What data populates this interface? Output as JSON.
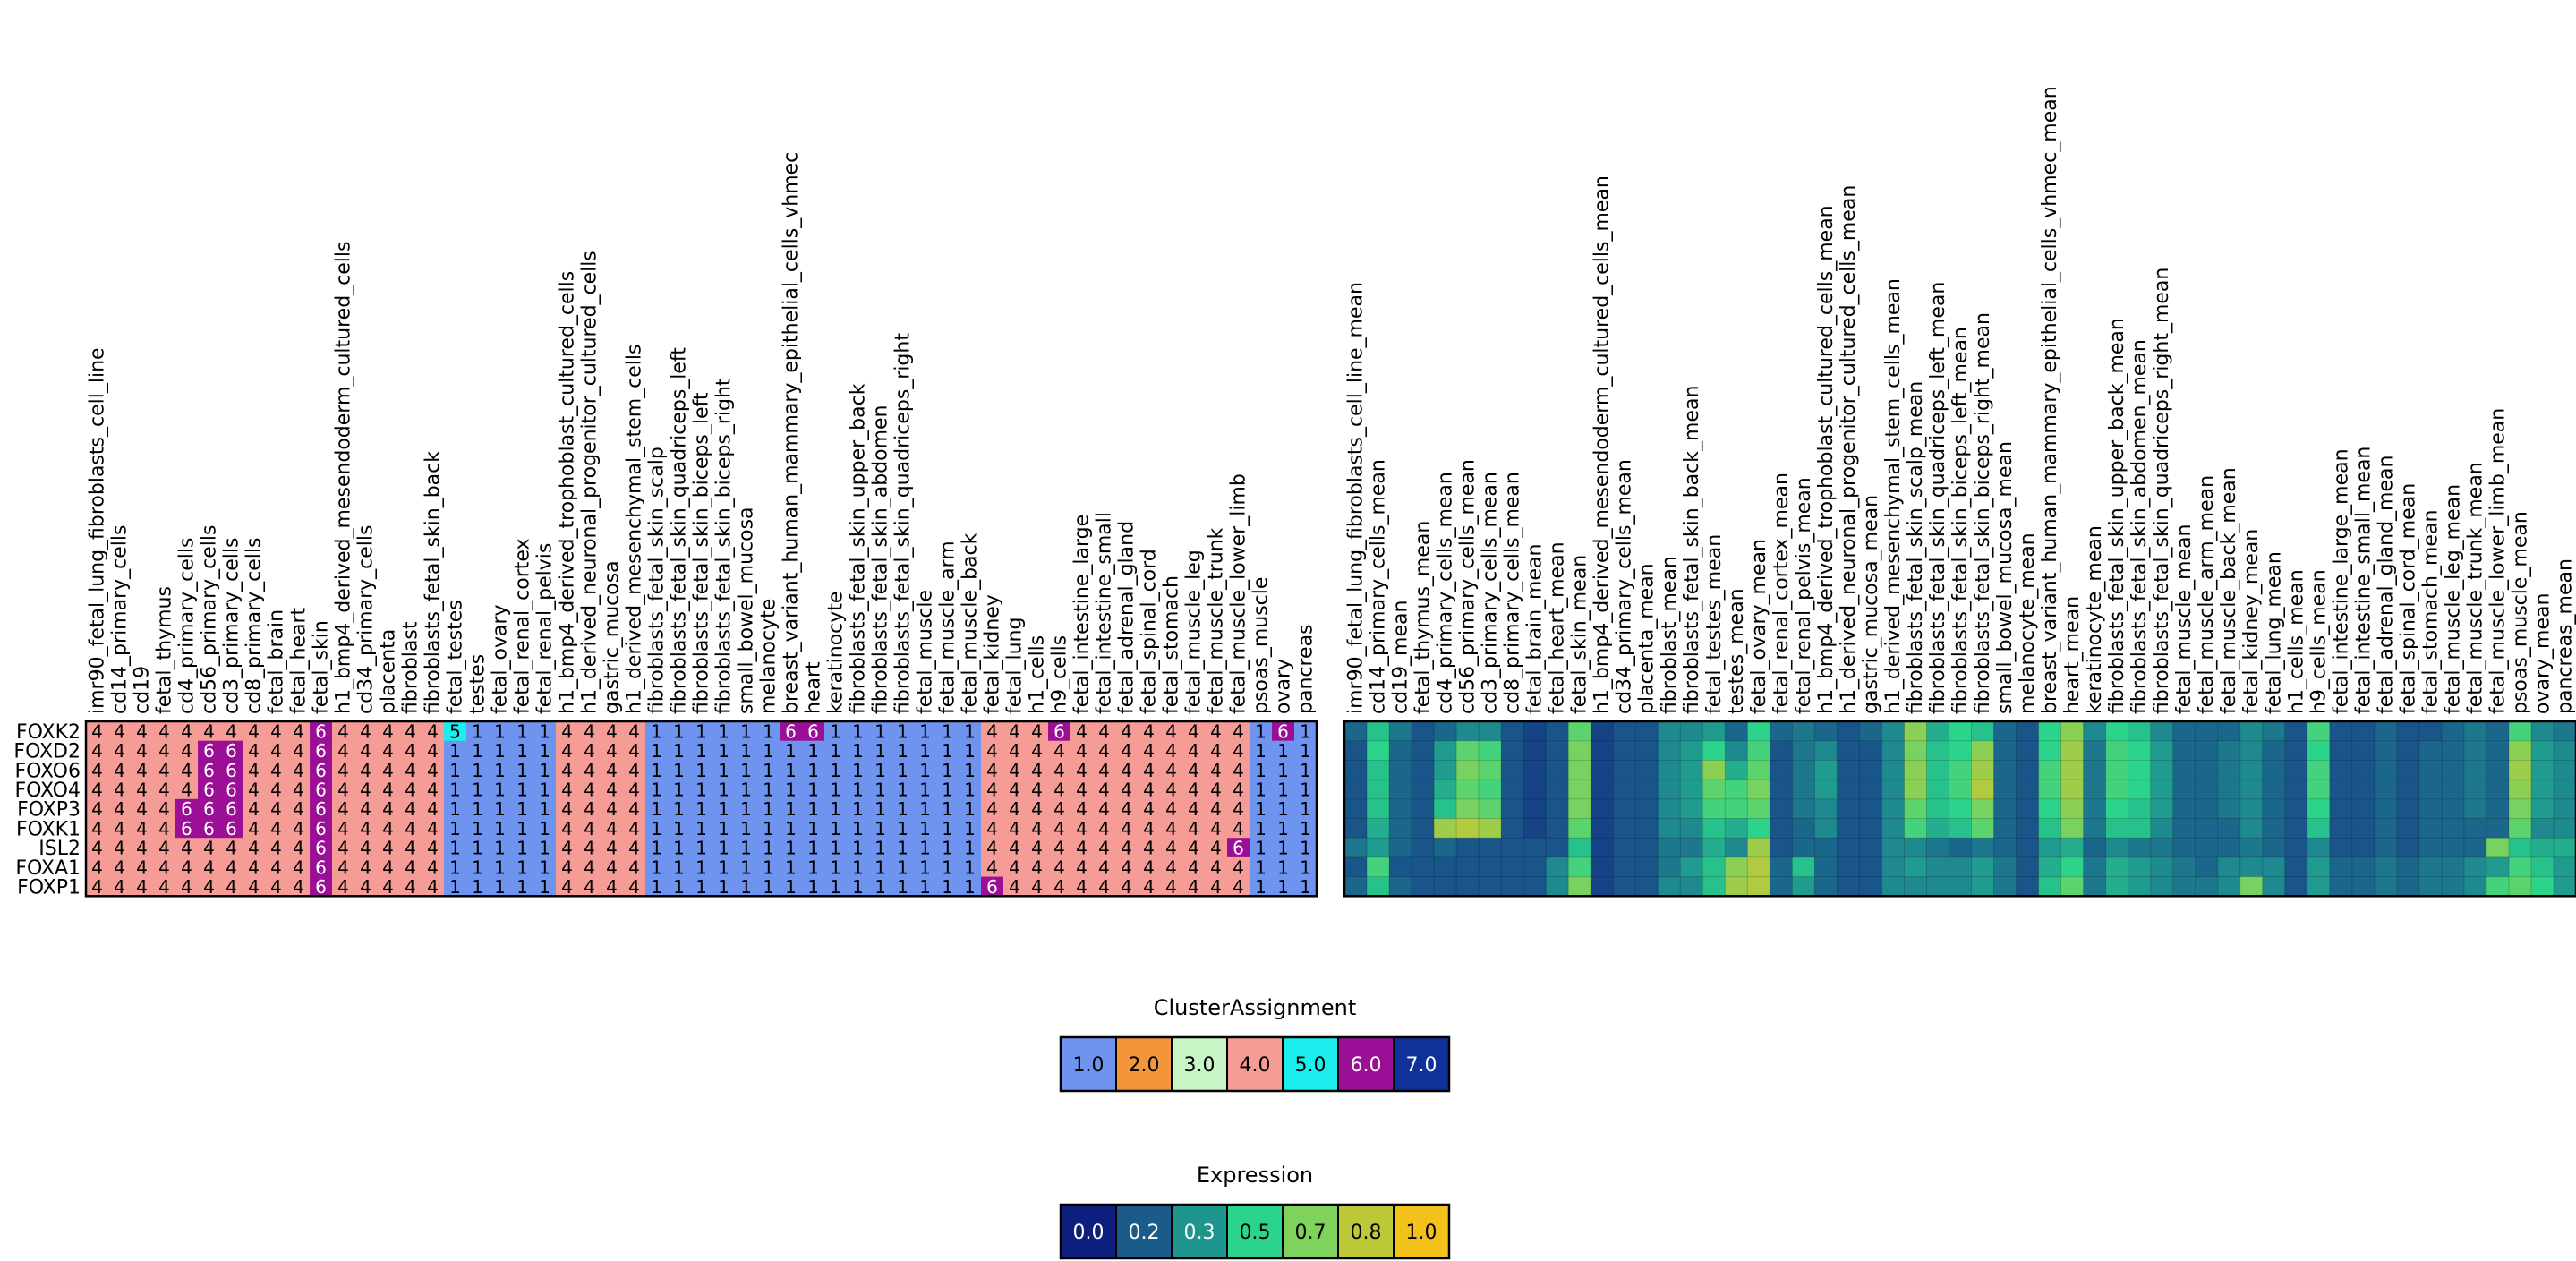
{
  "chart_data": [
    {
      "type": "heatmap",
      "subtype": "cluster-assignment",
      "genes": [
        "FOXK2",
        "FOXD2",
        "FOXO6",
        "FOXO4",
        "FOXP3",
        "FOXK1",
        "ISL2",
        "FOXA1",
        "FOXP1"
      ],
      "columns": [
        "imr90_fetal_lung_fibroblasts_cell_line",
        "cd14_primary_cells",
        "cd19",
        "fetal_thymus",
        "cd4_primary_cells",
        "cd56_primary_cells",
        "cd3_primary_cells",
        "cd8_primary_cells",
        "fetal_brain",
        "fetal_heart",
        "fetal_skin",
        "h1_bmp4_derived_mesendoderm_cultured_cells",
        "cd34_primary_cells",
        "placenta",
        "fibroblast",
        "fibroblasts_fetal_skin_back",
        "fetal_testes",
        "testes",
        "fetal_ovary",
        "fetal_renal_cortex",
        "fetal_renal_pelvis",
        "h1_bmp4_derived_trophoblast_cultured_cells",
        "h1_derived_neuronal_progenitor_cultured_cells",
        "gastric_mucosa",
        "h1_derived_mesenchymal_stem_cells",
        "fibroblasts_fetal_skin_scalp",
        "fibroblasts_fetal_skin_quadriceps_left",
        "fibroblasts_fetal_skin_biceps_left",
        "fibroblasts_fetal_skin_biceps_right",
        "small_bowel_mucosa",
        "melanocyte",
        "breast_variant_human_mammary_epithelial_cells_vhmec",
        "heart",
        "keratinocyte",
        "fibroblasts_fetal_skin_upper_back",
        "fibroblasts_fetal_skin_abdomen",
        "fibroblasts_fetal_skin_quadriceps_right",
        "fetal_muscle",
        "fetal_muscle_arm",
        "fetal_muscle_back",
        "fetal_kidney",
        "fetal_lung",
        "h1_cells",
        "h9_cells",
        "fetal_intestine_large",
        "fetal_intestine_small",
        "fetal_adrenal_gland",
        "fetal_spinal_cord",
        "fetal_stomach",
        "fetal_muscle_leg",
        "fetal_muscle_trunk",
        "fetal_muscle_lower_limb",
        "psoas_muscle",
        "ovary",
        "pancreas"
      ],
      "column_clusters": [
        4,
        4,
        4,
        4,
        4,
        4,
        4,
        4,
        4,
        4,
        4,
        4,
        4,
        4,
        4,
        4,
        1,
        1,
        1,
        1,
        1,
        4,
        4,
        4,
        4,
        1,
        1,
        1,
        1,
        1,
        1,
        1,
        1,
        1,
        1,
        1,
        1,
        1,
        1,
        1,
        4,
        4,
        4,
        4,
        4,
        4,
        4,
        4,
        4,
        4,
        4,
        4,
        1,
        1,
        1
      ],
      "overrides": {
        "FOXK2": [
          [
            10,
            6
          ],
          [
            16,
            5
          ],
          [
            31,
            6
          ],
          [
            32,
            6
          ],
          [
            43,
            6
          ],
          [
            53,
            6
          ]
        ],
        "FOXD2": [
          [
            5,
            6
          ],
          [
            6,
            6
          ],
          [
            10,
            6
          ]
        ],
        "FOXO6": [
          [
            5,
            6
          ],
          [
            6,
            6
          ],
          [
            10,
            6
          ]
        ],
        "FOXO4": [
          [
            5,
            6
          ],
          [
            6,
            6
          ],
          [
            10,
            6
          ]
        ],
        "FOXP3": [
          [
            4,
            6
          ],
          [
            5,
            6
          ],
          [
            6,
            6
          ],
          [
            10,
            6
          ]
        ],
        "FOXK1": [
          [
            4,
            6
          ],
          [
            5,
            6
          ],
          [
            6,
            6
          ],
          [
            10,
            6
          ]
        ],
        "ISL2": [
          [
            10,
            6
          ],
          [
            51,
            6
          ]
        ],
        "FOXA1": [
          [
            10,
            6
          ]
        ],
        "FOXP1": [
          [
            10,
            6
          ],
          [
            40,
            6
          ]
        ]
      }
    },
    {
      "type": "heatmap",
      "subtype": "expression",
      "genes": [
        "FOXK2",
        "FOXD2",
        "FOXO6",
        "FOXO4",
        "FOXP3",
        "FOXK1",
        "ISL2",
        "FOXA1",
        "FOXP1"
      ],
      "columns": [
        "imr90_fetal_lung_fibroblasts_cell_line_mean",
        "cd14_primary_cells_mean",
        "cd19_mean",
        "fetal_thymus_mean",
        "cd4_primary_cells_mean",
        "cd56_primary_cells_mean",
        "cd3_primary_cells_mean",
        "cd8_primary_cells_mean",
        "fetal_brain_mean",
        "fetal_heart_mean",
        "fetal_skin_mean",
        "h1_bmp4_derived_mesendoderm_cultured_cells_mean",
        "cd34_primary_cells_mean",
        "placenta_mean",
        "fibroblast_mean",
        "fibroblasts_fetal_skin_back_mean",
        "fetal_testes_mean",
        "testes_mean",
        "fetal_ovary_mean",
        "fetal_renal_cortex_mean",
        "fetal_renal_pelvis_mean",
        "h1_bmp4_derived_trophoblast_cultured_cells_mean",
        "h1_derived_neuronal_progenitor_cultured_cells_mean",
        "gastric_mucosa_mean",
        "h1_derived_mesenchymal_stem_cells_mean",
        "fibroblasts_fetal_skin_scalp_mean",
        "fibroblasts_fetal_skin_quadriceps_left_mean",
        "fibroblasts_fetal_skin_biceps_left_mean",
        "fibroblasts_fetal_skin_biceps_right_mean",
        "small_bowel_mucosa_mean",
        "melanocyte_mean",
        "breast_variant_human_mammary_epithelial_cells_vhmec_mean",
        "heart_mean",
        "keratinocyte_mean",
        "fibroblasts_fetal_skin_upper_back_mean",
        "fibroblasts_fetal_skin_abdomen_mean",
        "fibroblasts_fetal_skin_quadriceps_right_mean",
        "fetal_muscle_mean",
        "fetal_muscle_arm_mean",
        "fetal_muscle_back_mean",
        "fetal_kidney_mean",
        "fetal_lung_mean",
        "h1_cells_mean",
        "h9_cells_mean",
        "fetal_intestine_large_mean",
        "fetal_intestine_small_mean",
        "fetal_adrenal_gland_mean",
        "fetal_spinal_cord_mean",
        "fetal_stomach_mean",
        "fetal_muscle_leg_mean",
        "fetal_muscle_trunk_mean",
        "fetal_muscle_lower_limb_mean",
        "psoas_muscle_mean",
        "ovary_mean",
        "pancreas_mean"
      ],
      "values": [
        [
          0.2,
          0.45,
          0.25,
          0.15,
          0.2,
          0.3,
          0.3,
          0.15,
          0.1,
          0.15,
          0.6,
          0.1,
          0.15,
          0.15,
          0.3,
          0.3,
          0.35,
          0.2,
          0.5,
          0.2,
          0.25,
          0.2,
          0.15,
          0.2,
          0.3,
          0.7,
          0.4,
          0.5,
          0.45,
          0.2,
          0.15,
          0.5,
          0.7,
          0.3,
          0.5,
          0.45,
          0.3,
          0.2,
          0.2,
          0.2,
          0.3,
          0.25,
          0.15,
          0.55,
          0.15,
          0.15,
          0.2,
          0.15,
          0.15,
          0.2,
          0.25,
          0.2,
          0.55,
          0.3,
          0.25
        ],
        [
          0.15,
          0.5,
          0.2,
          0.15,
          0.35,
          0.6,
          0.55,
          0.15,
          0.1,
          0.15,
          0.65,
          0.1,
          0.15,
          0.15,
          0.3,
          0.35,
          0.5,
          0.3,
          0.55,
          0.15,
          0.25,
          0.3,
          0.15,
          0.15,
          0.3,
          0.65,
          0.45,
          0.5,
          0.7,
          0.2,
          0.15,
          0.5,
          0.75,
          0.25,
          0.55,
          0.5,
          0.35,
          0.2,
          0.2,
          0.25,
          0.3,
          0.2,
          0.15,
          0.5,
          0.15,
          0.15,
          0.2,
          0.15,
          0.2,
          0.2,
          0.25,
          0.2,
          0.7,
          0.35,
          0.3
        ],
        [
          0.15,
          0.45,
          0.2,
          0.15,
          0.35,
          0.65,
          0.6,
          0.15,
          0.1,
          0.15,
          0.65,
          0.1,
          0.15,
          0.15,
          0.3,
          0.35,
          0.7,
          0.4,
          0.6,
          0.15,
          0.25,
          0.35,
          0.15,
          0.15,
          0.3,
          0.7,
          0.45,
          0.55,
          0.75,
          0.2,
          0.15,
          0.55,
          0.75,
          0.25,
          0.55,
          0.5,
          0.35,
          0.2,
          0.2,
          0.25,
          0.3,
          0.2,
          0.15,
          0.55,
          0.15,
          0.15,
          0.2,
          0.15,
          0.2,
          0.2,
          0.25,
          0.2,
          0.75,
          0.35,
          0.3
        ],
        [
          0.15,
          0.45,
          0.2,
          0.15,
          0.4,
          0.6,
          0.55,
          0.15,
          0.1,
          0.15,
          0.65,
          0.1,
          0.15,
          0.15,
          0.3,
          0.35,
          0.6,
          0.55,
          0.65,
          0.15,
          0.25,
          0.35,
          0.15,
          0.15,
          0.3,
          0.7,
          0.45,
          0.55,
          0.8,
          0.2,
          0.15,
          0.55,
          0.75,
          0.25,
          0.55,
          0.5,
          0.35,
          0.2,
          0.2,
          0.25,
          0.3,
          0.2,
          0.15,
          0.55,
          0.15,
          0.15,
          0.2,
          0.15,
          0.2,
          0.2,
          0.25,
          0.2,
          0.7,
          0.35,
          0.3
        ],
        [
          0.15,
          0.45,
          0.2,
          0.15,
          0.45,
          0.65,
          0.6,
          0.15,
          0.1,
          0.15,
          0.65,
          0.1,
          0.15,
          0.15,
          0.3,
          0.35,
          0.55,
          0.55,
          0.6,
          0.15,
          0.25,
          0.3,
          0.15,
          0.15,
          0.3,
          0.6,
          0.45,
          0.5,
          0.65,
          0.2,
          0.15,
          0.5,
          0.7,
          0.25,
          0.5,
          0.45,
          0.35,
          0.2,
          0.2,
          0.25,
          0.3,
          0.2,
          0.15,
          0.5,
          0.15,
          0.15,
          0.2,
          0.15,
          0.2,
          0.2,
          0.25,
          0.2,
          0.65,
          0.35,
          0.3
        ],
        [
          0.15,
          0.4,
          0.2,
          0.15,
          0.75,
          0.8,
          0.75,
          0.15,
          0.1,
          0.15,
          0.6,
          0.1,
          0.15,
          0.15,
          0.3,
          0.3,
          0.45,
          0.4,
          0.5,
          0.15,
          0.2,
          0.3,
          0.15,
          0.15,
          0.3,
          0.55,
          0.4,
          0.45,
          0.6,
          0.2,
          0.15,
          0.45,
          0.65,
          0.25,
          0.45,
          0.45,
          0.3,
          0.2,
          0.2,
          0.2,
          0.3,
          0.2,
          0.15,
          0.45,
          0.15,
          0.15,
          0.2,
          0.15,
          0.2,
          0.2,
          0.2,
          0.2,
          0.6,
          0.3,
          0.3
        ],
        [
          0.25,
          0.35,
          0.2,
          0.15,
          0.2,
          0.15,
          0.15,
          0.15,
          0.15,
          0.15,
          0.45,
          0.1,
          0.15,
          0.15,
          0.25,
          0.25,
          0.4,
          0.3,
          0.75,
          0.15,
          0.2,
          0.2,
          0.15,
          0.15,
          0.3,
          0.3,
          0.25,
          0.2,
          0.25,
          0.2,
          0.15,
          0.35,
          0.4,
          0.2,
          0.3,
          0.25,
          0.25,
          0.2,
          0.2,
          0.2,
          0.25,
          0.2,
          0.15,
          0.3,
          0.15,
          0.15,
          0.2,
          0.15,
          0.2,
          0.2,
          0.2,
          0.65,
          0.45,
          0.4,
          0.4
        ],
        [
          0.15,
          0.55,
          0.15,
          0.15,
          0.15,
          0.15,
          0.15,
          0.15,
          0.15,
          0.3,
          0.55,
          0.1,
          0.15,
          0.15,
          0.25,
          0.35,
          0.45,
          0.7,
          0.8,
          0.2,
          0.45,
          0.2,
          0.15,
          0.15,
          0.3,
          0.35,
          0.3,
          0.3,
          0.35,
          0.25,
          0.15,
          0.4,
          0.5,
          0.25,
          0.4,
          0.35,
          0.3,
          0.25,
          0.2,
          0.3,
          0.3,
          0.3,
          0.15,
          0.35,
          0.2,
          0.2,
          0.25,
          0.2,
          0.25,
          0.25,
          0.3,
          0.35,
          0.55,
          0.45,
          0.35
        ],
        [
          0.2,
          0.45,
          0.2,
          0.15,
          0.15,
          0.15,
          0.15,
          0.15,
          0.15,
          0.3,
          0.65,
          0.1,
          0.15,
          0.15,
          0.3,
          0.3,
          0.45,
          0.75,
          0.8,
          0.2,
          0.35,
          0.2,
          0.15,
          0.15,
          0.3,
          0.3,
          0.3,
          0.3,
          0.35,
          0.25,
          0.15,
          0.45,
          0.6,
          0.25,
          0.4,
          0.35,
          0.3,
          0.25,
          0.25,
          0.3,
          0.65,
          0.3,
          0.15,
          0.35,
          0.2,
          0.2,
          0.25,
          0.2,
          0.25,
          0.25,
          0.3,
          0.55,
          0.6,
          0.5,
          0.35
        ]
      ]
    }
  ],
  "legends": {
    "cluster": {
      "title": "ClusterAssignment",
      "entries": [
        {
          "label": "1.0",
          "color": "#6f94f0",
          "text": "#000000"
        },
        {
          "label": "2.0",
          "color": "#f3963a",
          "text": "#000000"
        },
        {
          "label": "3.0",
          "color": "#c7f5c6",
          "text": "#000000"
        },
        {
          "label": "4.0",
          "color": "#f59c96",
          "text": "#000000"
        },
        {
          "label": "5.0",
          "color": "#1ceeee",
          "text": "#000000"
        },
        {
          "label": "6.0",
          "color": "#9b0e96",
          "text": "#ffffff"
        },
        {
          "label": "7.0",
          "color": "#10309a",
          "text": "#ffffff"
        }
      ]
    },
    "expression": {
      "title": "Expression",
      "entries": [
        {
          "label": "0.0",
          "color": "#0d1e7e",
          "text": "#ffffff"
        },
        {
          "label": "0.2",
          "color": "#1a5b8a",
          "text": "#ffffff"
        },
        {
          "label": "0.3",
          "color": "#1f9590",
          "text": "#ffffff"
        },
        {
          "label": "0.5",
          "color": "#2bd48a",
          "text": "#000000"
        },
        {
          "label": "0.7",
          "color": "#7fd25c",
          "text": "#000000"
        },
        {
          "label": "0.8",
          "color": "#bdc839",
          "text": "#000000"
        },
        {
          "label": "1.0",
          "color": "#f2c21a",
          "text": "#000000"
        }
      ]
    }
  },
  "colors": {
    "cluster_map": {
      "1": "#6f94f0",
      "4": "#f59c96",
      "5": "#1ceeee",
      "6": "#9b0e96"
    },
    "cluster_text": {
      "1": "#000000",
      "4": "#000000",
      "5": "#000000",
      "6": "#ffffff"
    },
    "expression_stops": [
      "#0d1e7e",
      "#1a5b8a",
      "#1f9590",
      "#2bd48a",
      "#7fd25c",
      "#bdc839",
      "#f2c21a"
    ]
  }
}
